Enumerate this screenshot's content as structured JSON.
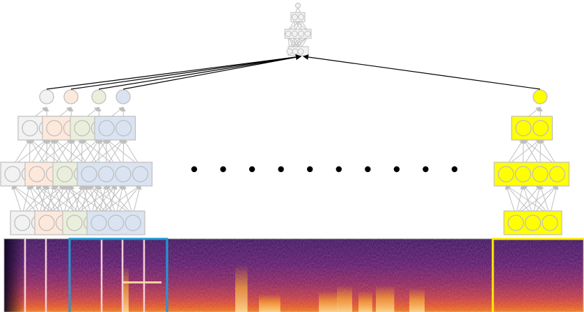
{
  "diagram": {
    "title": "",
    "ellipsis_count": 10,
    "colors": {
      "gray_fill": "#f2f2f2",
      "gray_stroke": "#bfbfbf",
      "peach_fill": "#fde9dc",
      "green_fill": "#eaefdc",
      "blue_fill": "#dae3f1",
      "yellow_fill": "#ffff00",
      "arrow": "#000000",
      "window_pink": "#f7cfd8",
      "window_blue": "#1e9ad6",
      "window_yellow": "#ffee00"
    },
    "local_networks": [
      {
        "name": "local-net-gray",
        "color": "gray_fill"
      },
      {
        "name": "local-net-peach",
        "color": "peach_fill"
      },
      {
        "name": "local-net-green",
        "color": "green_fill"
      },
      {
        "name": "local-net-blue",
        "color": "blue_fill"
      },
      {
        "name": "local-net-yellow",
        "color": "yellow_fill"
      }
    ],
    "spectrogram": {
      "colormap": "inferno",
      "window_count_highlighted": 3
    }
  }
}
